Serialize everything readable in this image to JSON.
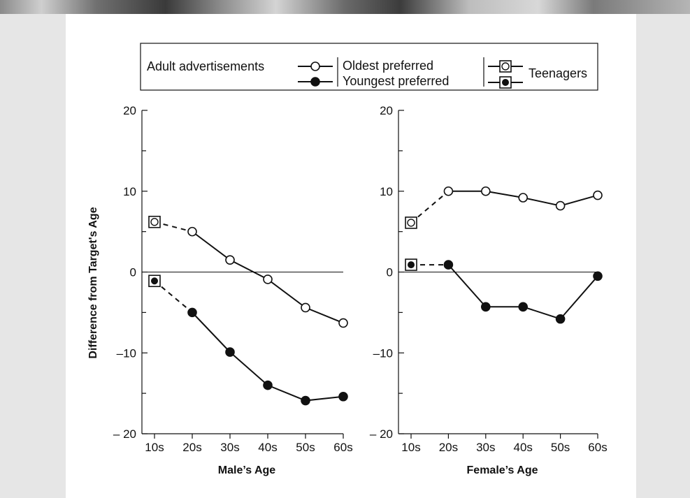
{
  "legend": {
    "adult_label": "Adult advertisements",
    "oldest_label": "Oldest preferred",
    "youngest_label": "Youngest preferred",
    "teen_label": "Teenagers"
  },
  "y_axis_label": "Difference from Target's Age",
  "colors": {
    "ink": "#111111",
    "open_fill": "#ffffff",
    "filled": "#111111"
  },
  "chart_data": [
    {
      "type": "line",
      "xlabel": "Male’s Age",
      "ylabel": "Difference from Target’s Age",
      "categories": [
        "10s",
        "20s",
        "30s",
        "40s",
        "50s",
        "60s"
      ],
      "ylim": [
        -20,
        20
      ],
      "yticks": [
        -20,
        -10,
        0,
        10,
        20
      ],
      "y_tick_labels": [
        "– 20",
        "–10",
        "0",
        "10",
        "20"
      ],
      "series": [
        {
          "name": "Oldest preferred",
          "values": [
            null,
            5,
            1.5,
            -0.9,
            -4.4,
            -6.3
          ],
          "marker": "open-circle"
        },
        {
          "name": "Youngest preferred",
          "values": [
            null,
            -5,
            -9.9,
            -14,
            -15.9,
            -15.4
          ],
          "marker": "filled-circle"
        },
        {
          "name": "Teenagers",
          "teen_oldest": 6.2,
          "teen_youngest": -1.1
        }
      ]
    },
    {
      "type": "line",
      "xlabel": "Female’s Age",
      "ylabel": "",
      "categories": [
        "10s",
        "20s",
        "30s",
        "40s",
        "50s",
        "60s"
      ],
      "ylim": [
        -20,
        20
      ],
      "yticks": [
        -20,
        -10,
        0,
        10,
        20
      ],
      "y_tick_labels": [
        "– 20",
        "–10",
        "0",
        "10",
        "20"
      ],
      "series": [
        {
          "name": "Oldest preferred",
          "values": [
            null,
            10,
            10,
            9.2,
            8.2,
            9.5
          ],
          "marker": "open-circle"
        },
        {
          "name": "Youngest preferred",
          "values": [
            null,
            0.9,
            -4.3,
            -4.3,
            -5.8,
            -0.5
          ],
          "marker": "filled-circle"
        },
        {
          "name": "Teenagers",
          "teen_oldest": 6.1,
          "teen_youngest": 0.9
        }
      ]
    }
  ]
}
